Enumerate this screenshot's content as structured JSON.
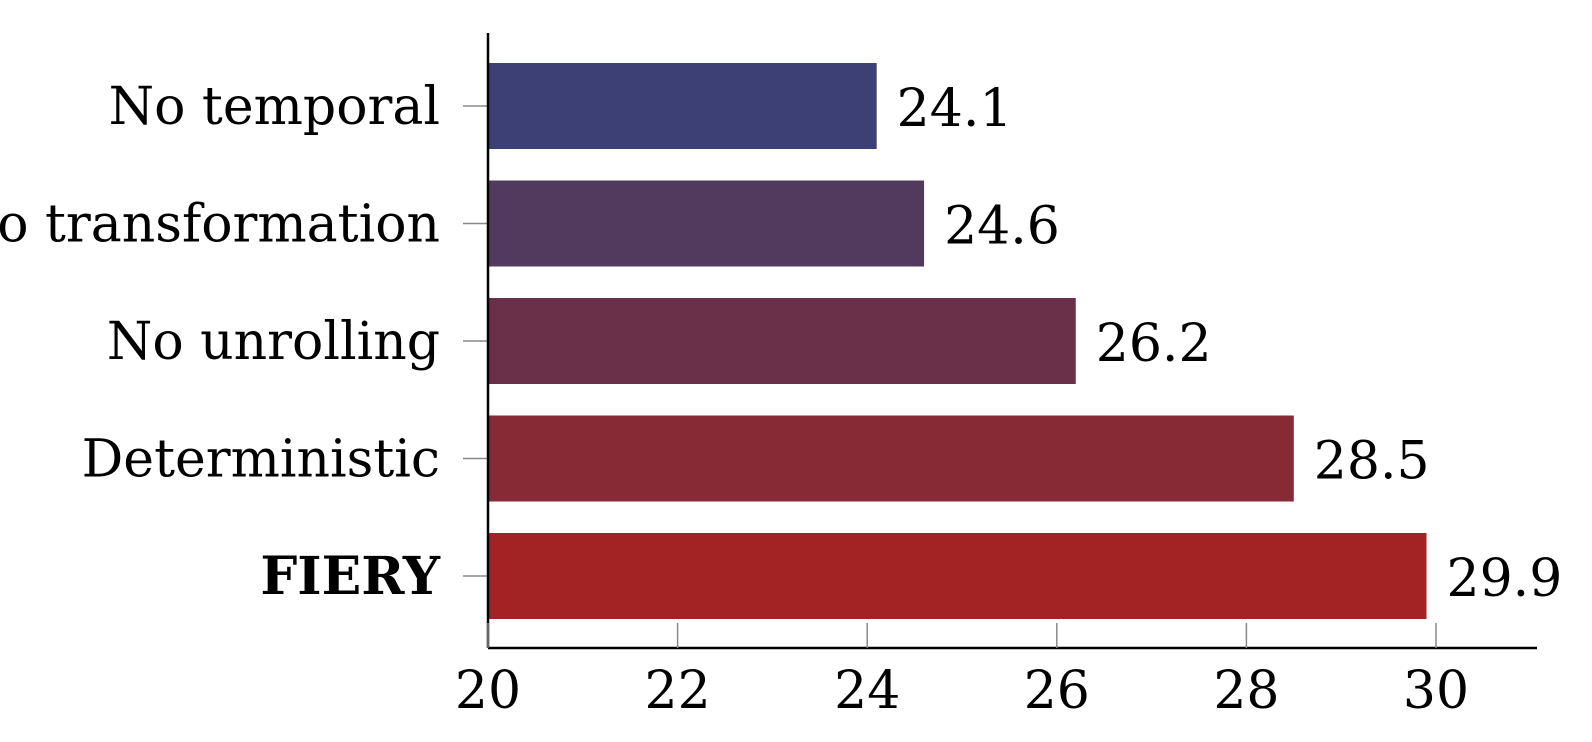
{
  "chart_data": {
    "type": "bar",
    "orientation": "horizontal",
    "categories": [
      "No temporal",
      "No transformation",
      "No unrolling",
      "Deterministic",
      "FIERY"
    ],
    "values": [
      24.1,
      24.6,
      26.2,
      28.5,
      29.9
    ],
    "value_labels": [
      "24.1",
      "24.6",
      "26.2",
      "28.5",
      "29.9"
    ],
    "bold_categories": [
      "FIERY"
    ],
    "colors": [
      "#3d4074",
      "#523a5f",
      "#6b3049",
      "#872a36",
      "#a32224"
    ],
    "xlim": [
      20,
      31
    ],
    "xticks": [
      20,
      22,
      24,
      26,
      28,
      30
    ],
    "xtick_labels": [
      "20",
      "22",
      "24",
      "26",
      "28",
      "30"
    ],
    "title": "",
    "xlabel": "",
    "ylabel": "",
    "grid": false
  }
}
